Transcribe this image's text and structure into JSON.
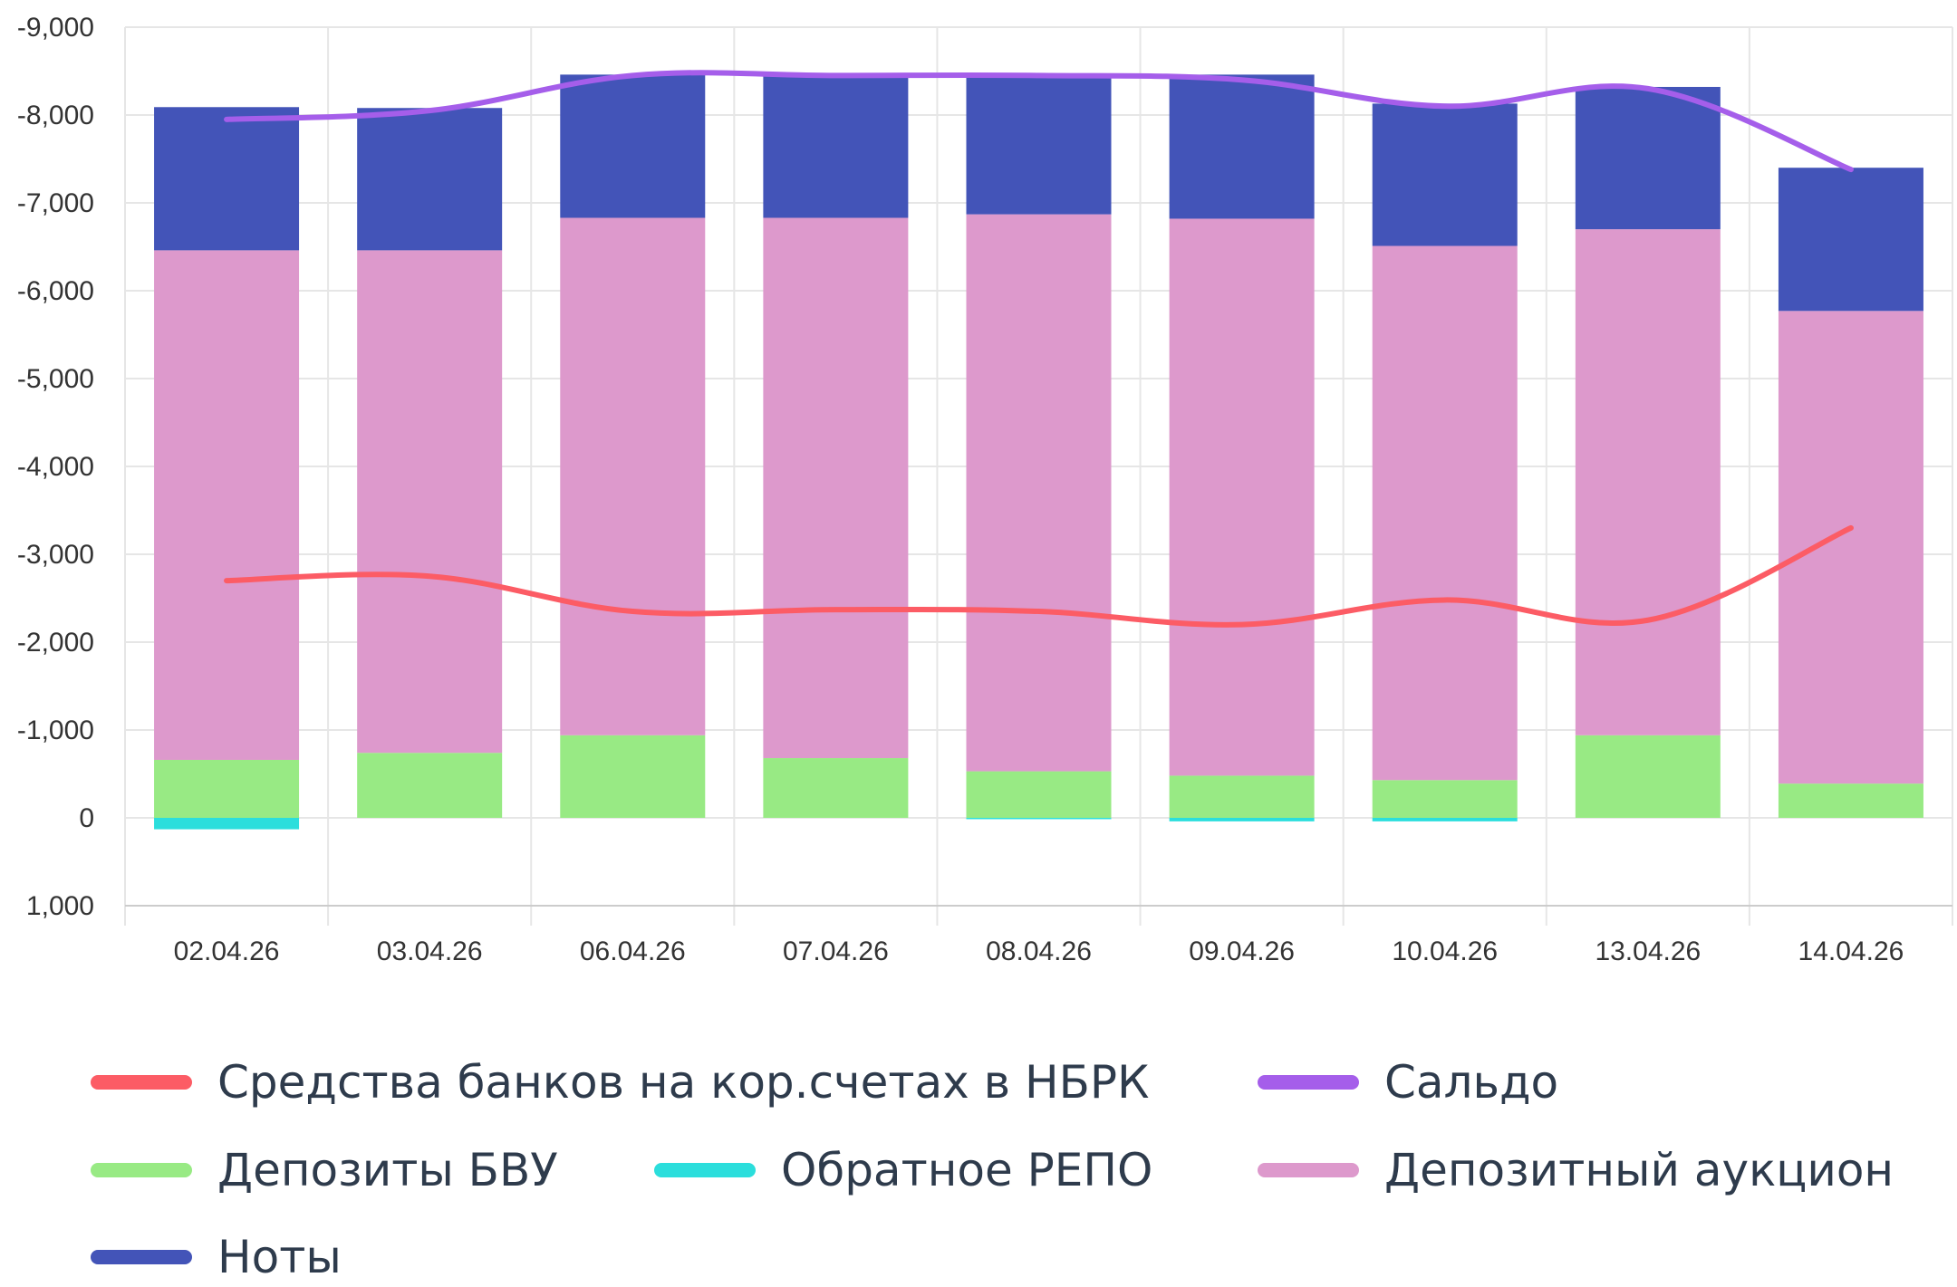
{
  "chart_data": {
    "type": "bar",
    "stacked": true,
    "categories": [
      "02.04.26",
      "03.04.26",
      "06.04.26",
      "07.04.26",
      "08.04.26",
      "09.04.26",
      "10.04.26",
      "13.04.26",
      "14.04.26"
    ],
    "y_tick_values": [
      -9000,
      -8000,
      -7000,
      -6000,
      -5000,
      -4000,
      -3000,
      -2000,
      -1000,
      0,
      1000
    ],
    "y_tick_labels": [
      "-9,000",
      "-8,000",
      "-7,000",
      "-6,000",
      "-5,000",
      "-4,000",
      "-3,000",
      "-2,000",
      "-1,000",
      "0",
      "1,000"
    ],
    "ylim": [
      -9000,
      1000
    ],
    "y_axis_inverted": true,
    "grid": true,
    "legend_position": "bottom",
    "series": [
      {
        "name": "Средства банков на кор.счетах в НБРК",
        "type": "line",
        "color": "#fc5c65",
        "values": [
          -2700,
          -2750,
          -2350,
          -2370,
          -2350,
          -2200,
          -2480,
          -2250,
          -3300
        ]
      },
      {
        "name": "Сальдо",
        "type": "line",
        "color": "#a55eea",
        "values": [
          -7950,
          -8050,
          -8450,
          -8450,
          -8450,
          -8400,
          -8100,
          -8300,
          -7380
        ]
      },
      {
        "name": "Депозиты БВУ",
        "type": "bar",
        "color": "#98ea84",
        "values": [
          -660,
          -740,
          -940,
          -680,
          -530,
          -480,
          -430,
          -940,
          -390
        ]
      },
      {
        "name": "Обратное РЕПО",
        "type": "bar",
        "color": "#2bdedc",
        "values": [
          130,
          0,
          0,
          0,
          15,
          40,
          40,
          0,
          0
        ]
      },
      {
        "name": "Депозитный аукцион",
        "type": "bar",
        "color": "#dd99cc",
        "values": [
          -5800,
          -5720,
          -5890,
          -6150,
          -6340,
          -6340,
          -6080,
          -5760,
          -5380
        ]
      },
      {
        "name": "Ноты",
        "type": "bar",
        "color": "#4354b8",
        "values": [
          -1630,
          -1620,
          -1630,
          -1630,
          -1600,
          -1640,
          -1620,
          -1620,
          -1630
        ]
      }
    ]
  }
}
